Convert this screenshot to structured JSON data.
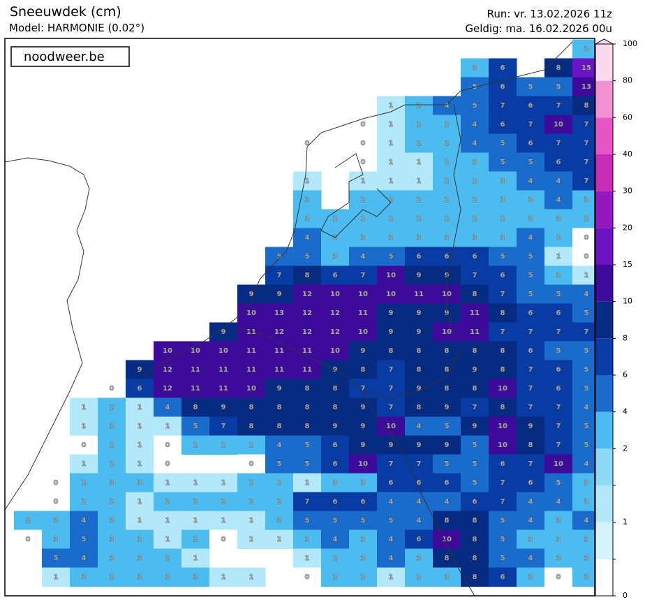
{
  "map": {
    "type": "grid_map",
    "title": "Sneeuwdek (cm)",
    "subtitle": "Model: HARMONIE (0.02°)",
    "run": "Run: vr. 13.02.2026 11z",
    "valid": "Geldig: ma. 16.02.2026 00u",
    "brand": "noodweer.be",
    "grid": [
      [
        null,
        null,
        null,
        null,
        null,
        null,
        null,
        null,
        null,
        null,
        null,
        null,
        null,
        null,
        null,
        null,
        null,
        null,
        null,
        null,
        3
      ],
      [
        null,
        null,
        null,
        null,
        null,
        null,
        null,
        null,
        null,
        null,
        null,
        null,
        null,
        null,
        null,
        null,
        3,
        6,
        null,
        8,
        15
      ],
      [
        null,
        null,
        null,
        null,
        null,
        null,
        null,
        null,
        null,
        null,
        null,
        null,
        null,
        null,
        null,
        null,
        5,
        6,
        5,
        5,
        13
      ],
      [
        null,
        null,
        null,
        null,
        null,
        null,
        null,
        null,
        null,
        null,
        null,
        null,
        null,
        1,
        2,
        4,
        5,
        7,
        6,
        7,
        8
      ],
      [
        null,
        null,
        null,
        null,
        null,
        null,
        null,
        null,
        null,
        null,
        null,
        null,
        0,
        1,
        2,
        2,
        4,
        6,
        7,
        10,
        7
      ],
      [
        null,
        null,
        null,
        null,
        null,
        null,
        null,
        null,
        null,
        null,
        0,
        null,
        0,
        1,
        2,
        2,
        4,
        5,
        6,
        7,
        7
      ],
      [
        null,
        null,
        null,
        null,
        null,
        null,
        null,
        null,
        null,
        null,
        null,
        null,
        0,
        1,
        1,
        2,
        3,
        5,
        5,
        6,
        7
      ],
      [
        null,
        null,
        null,
        null,
        null,
        null,
        null,
        null,
        null,
        null,
        1,
        null,
        1,
        1,
        1,
        2,
        2,
        3,
        4,
        4,
        7
      ],
      [
        null,
        null,
        null,
        null,
        null,
        null,
        null,
        null,
        null,
        null,
        3,
        null,
        2,
        2,
        2,
        2,
        2,
        3,
        3,
        4,
        3
      ],
      [
        null,
        null,
        null,
        null,
        null,
        null,
        null,
        null,
        null,
        null,
        3,
        2,
        2,
        2,
        2,
        2,
        2,
        2,
        3,
        3,
        2
      ],
      [
        null,
        null,
        null,
        null,
        null,
        null,
        null,
        null,
        null,
        null,
        4,
        2,
        3,
        3,
        3,
        3,
        3,
        3,
        4,
        2,
        0
      ],
      [
        null,
        null,
        null,
        null,
        null,
        null,
        null,
        null,
        null,
        5,
        5,
        3,
        4,
        5,
        6,
        6,
        6,
        5,
        5,
        1,
        0
      ],
      [
        null,
        null,
        null,
        null,
        null,
        null,
        null,
        null,
        null,
        7,
        8,
        6,
        7,
        10,
        9,
        9,
        7,
        6,
        5,
        3,
        1
      ],
      [
        null,
        null,
        null,
        null,
        null,
        null,
        null,
        null,
        9,
        9,
        12,
        10,
        10,
        10,
        11,
        10,
        8,
        7,
        5,
        5,
        4
      ],
      [
        null,
        null,
        null,
        null,
        null,
        null,
        null,
        null,
        10,
        13,
        12,
        12,
        11,
        9,
        9,
        9,
        11,
        8,
        6,
        6,
        5
      ],
      [
        null,
        null,
        null,
        null,
        null,
        null,
        null,
        9,
        11,
        12,
        12,
        12,
        10,
        9,
        9,
        10,
        11,
        7,
        7,
        7,
        7
      ],
      [
        null,
        null,
        null,
        null,
        null,
        10,
        10,
        10,
        11,
        11,
        11,
        10,
        9,
        8,
        8,
        8,
        8,
        8,
        6,
        5,
        5
      ],
      [
        null,
        null,
        null,
        null,
        9,
        12,
        11,
        11,
        11,
        11,
        11,
        9,
        8,
        7,
        8,
        8,
        9,
        8,
        7,
        6,
        5
      ],
      [
        null,
        null,
        null,
        0,
        6,
        12,
        11,
        11,
        10,
        9,
        8,
        8,
        7,
        7,
        9,
        8,
        8,
        10,
        7,
        6,
        5
      ],
      [
        null,
        null,
        1,
        2,
        1,
        4,
        8,
        9,
        8,
        8,
        8,
        8,
        9,
        7,
        8,
        9,
        7,
        8,
        7,
        7,
        4
      ],
      [
        null,
        null,
        1,
        3,
        1,
        1,
        5,
        7,
        8,
        8,
        8,
        9,
        9,
        10,
        4,
        5,
        9,
        10,
        9,
        7,
        5
      ],
      [
        null,
        null,
        0,
        2,
        1,
        0,
        2,
        2,
        2,
        4,
        5,
        6,
        9,
        9,
        9,
        9,
        5,
        10,
        8,
        7,
        5
      ],
      [
        null,
        null,
        1,
        2,
        1,
        0,
        null,
        null,
        0,
        5,
        5,
        6,
        10,
        7,
        7,
        5,
        5,
        6,
        7,
        10,
        4
      ],
      [
        null,
        0,
        2,
        3,
        3,
        1,
        1,
        1,
        2,
        2,
        1,
        3,
        3,
        6,
        6,
        6,
        5,
        7,
        6,
        5,
        3
      ],
      [
        null,
        0,
        2,
        2,
        1,
        2,
        2,
        2,
        2,
        2,
        7,
        6,
        6,
        4,
        4,
        4,
        6,
        7,
        4,
        4,
        3
      ],
      [
        2,
        3,
        4,
        3,
        1,
        1,
        1,
        1,
        1,
        3,
        5,
        5,
        5,
        5,
        4,
        8,
        8,
        5,
        4,
        3,
        4
      ],
      [
        0,
        3,
        5,
        3,
        3,
        1,
        2,
        0,
        1,
        1,
        3,
        4,
        3,
        4,
        6,
        10,
        8,
        5,
        3,
        3,
        3
      ],
      [
        null,
        5,
        4,
        3,
        3,
        2,
        1,
        null,
        null,
        null,
        1,
        2,
        3,
        4,
        3,
        8,
        8,
        5,
        4,
        3,
        3
      ],
      [
        null,
        1,
        3,
        2,
        3,
        3,
        3,
        1,
        1,
        null,
        0,
        2,
        2,
        1,
        2,
        3,
        8,
        6,
        3,
        0,
        3
      ]
    ],
    "colorbar": {
      "levels": [
        0,
        0.5,
        1,
        1.5,
        2,
        4,
        6,
        8,
        10,
        15,
        20,
        30,
        40,
        60,
        80,
        100
      ],
      "colors": [
        "#ffffff",
        "#d4f3fc",
        "#b2e8f9",
        "#8ed9f6",
        "#4cbcf0",
        "#1a6ccc",
        "#083ca4",
        "#072a82",
        "#3d0a9c",
        "#6b14c4",
        "#9418c0",
        "#c82cb8",
        "#e656c4",
        "#f290d4",
        "#fdd9f0"
      ],
      "ticks": [
        0,
        1,
        2,
        4,
        6,
        8,
        10,
        15,
        20,
        30,
        40,
        60,
        80,
        100
      ]
    }
  }
}
